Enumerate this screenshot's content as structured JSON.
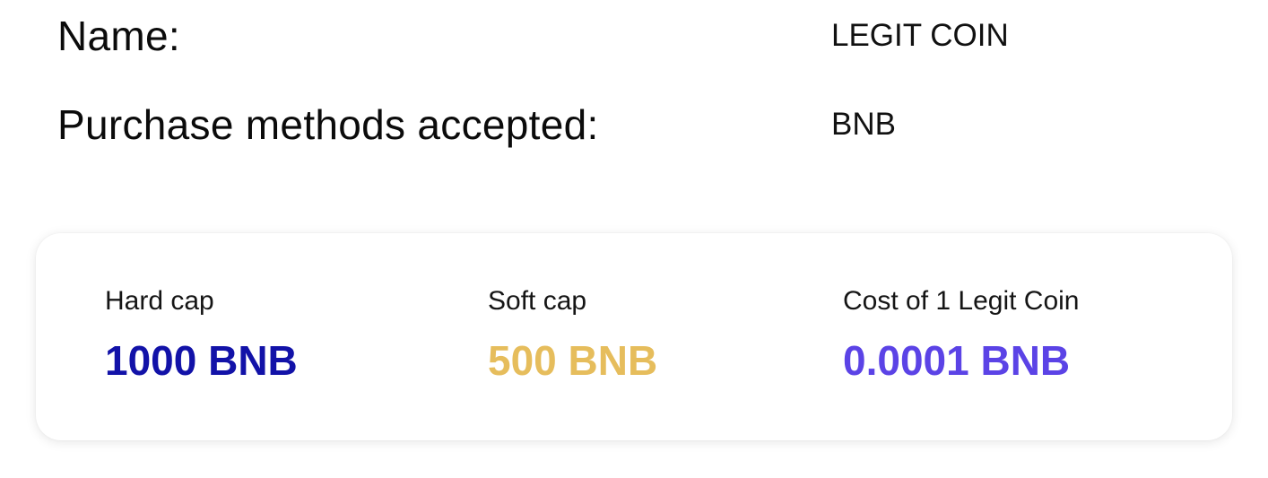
{
  "info": {
    "name_label": "Name:",
    "name_value": "LEGIT COIN",
    "methods_label": "Purchase methods accepted:",
    "methods_value": "BNB"
  },
  "stats": {
    "hard_cap": {
      "label": "Hard cap",
      "value": "1000 BNB",
      "color": "#1212a8"
    },
    "soft_cap": {
      "label": "Soft cap",
      "value": "500 BNB",
      "color": "#e6bd5c"
    },
    "cost": {
      "label": "Cost of 1 Legit Coin",
      "value": "0.0001 BNB",
      "color": "#5b43e6"
    }
  }
}
